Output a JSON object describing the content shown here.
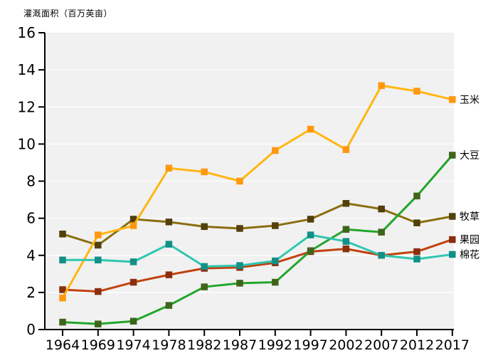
{
  "chart_data": {
    "type": "line",
    "title": "灌溉面积（百万英亩）",
    "categories": [
      "1964",
      "1969",
      "1974",
      "1978",
      "1982",
      "1987",
      "1992",
      "1997",
      "2002",
      "2007",
      "2012",
      "2017"
    ],
    "ylim": [
      0,
      16
    ],
    "yticks": [
      0,
      2,
      4,
      6,
      8,
      10,
      12,
      14,
      16
    ],
    "grid": true,
    "plot_bg": "#f1f1f1",
    "grid_color": "#ffffff",
    "axis_color": "#000000",
    "tick_label_color": "#000000",
    "legend_position": "right-of-line-ends",
    "z_order": [
      "pasture",
      "orchard",
      "corn",
      "soybean",
      "cotton"
    ],
    "series": [
      {
        "id": "corn",
        "name": "玉米",
        "line_color": "#ffb612",
        "marker_color": "#ff980e",
        "marker": "square",
        "values": [
          1.7,
          5.1,
          5.6,
          8.7,
          8.5,
          8.0,
          9.65,
          10.8,
          9.7,
          13.15,
          12.85,
          12.4
        ]
      },
      {
        "id": "soybean",
        "name": "大豆",
        "line_color": "#22a52b",
        "marker_color": "#3f651a",
        "marker": "square",
        "values": [
          0.4,
          0.3,
          0.45,
          1.3,
          2.3,
          2.5,
          2.55,
          4.25,
          5.4,
          5.25,
          7.2,
          9.4
        ]
      },
      {
        "id": "pasture",
        "name": "牧草",
        "line_color": "#8a6e0f",
        "marker_color": "#52400a",
        "marker": "square",
        "values": [
          5.15,
          4.55,
          5.95,
          5.8,
          5.55,
          5.45,
          5.6,
          5.95,
          6.8,
          6.5,
          5.75,
          6.1
        ]
      },
      {
        "id": "orchard",
        "name": "果园",
        "line_color": "#c2410e",
        "marker_color": "#8a2f0c",
        "marker": "square",
        "values": [
          2.15,
          2.05,
          2.55,
          2.95,
          3.3,
          3.35,
          3.6,
          4.2,
          4.35,
          4.0,
          4.2,
          4.85
        ]
      },
      {
        "id": "cotton",
        "name": "棉花",
        "line_color": "#2fc7b0",
        "marker_color": "#138f87",
        "marker": "square",
        "values": [
          3.75,
          3.75,
          3.65,
          4.6,
          3.4,
          3.45,
          3.7,
          5.1,
          4.75,
          4.0,
          3.8,
          4.05
        ]
      }
    ]
  }
}
